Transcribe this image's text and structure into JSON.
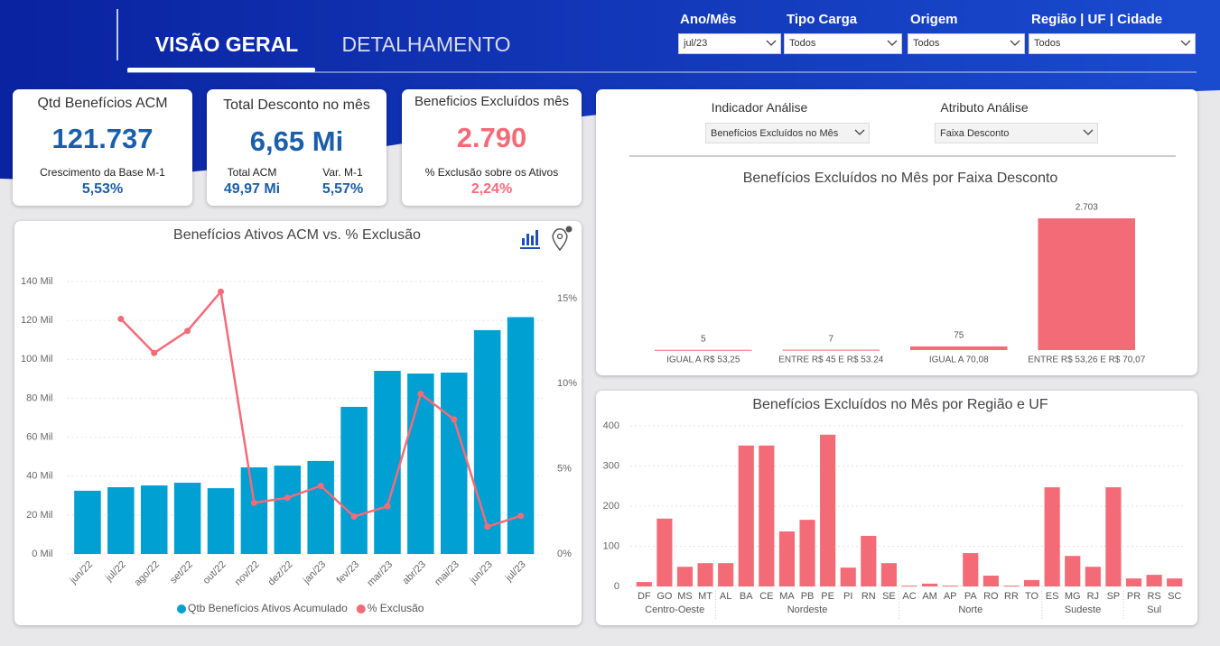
{
  "header": {
    "tabs": [
      "VISÃO GERAL",
      "DETALHAMENTO"
    ]
  },
  "filters": [
    {
      "label": "Ano/Mês",
      "value": "jul/23"
    },
    {
      "label": "Tipo Carga",
      "value": "Todos"
    },
    {
      "label": "Origem",
      "value": "Todos"
    },
    {
      "label": "Região | UF | Cidade",
      "value": "Todos"
    }
  ],
  "kpis": [
    {
      "title": "Qtd Benefícios ACM",
      "value": "121.737",
      "details": [
        {
          "label": "Crescimento da Base M-1",
          "value": "5,53%"
        }
      ]
    },
    {
      "title": "Total Desconto no mês",
      "value": "6,65 Mi",
      "details": [
        {
          "label": "Total ACM",
          "value": "49,97 Mi"
        },
        {
          "label": "Var. M-1",
          "value": "5,57%"
        }
      ]
    },
    {
      "title": "Beneficios Excluídos mês",
      "value": "2.790",
      "details": [
        {
          "label": "% Exclusão sobre os Ativos",
          "value": "2,24%"
        }
      ]
    }
  ],
  "selectors": [
    {
      "label": "Indicador Análise",
      "value": "Benefícios Excluídos no Mês"
    },
    {
      "label": "Atributo Análise",
      "value": "Faixa Desconto"
    }
  ],
  "chart_data": [
    {
      "type": "combo",
      "title": "Benefícios Ativos ACM vs. % Exclusão",
      "categories": [
        "jun/22",
        "jul/22",
        "ago/22",
        "set/22",
        "out/22",
        "nov/22",
        "dez/22",
        "jan/23",
        "fev/23",
        "mar/23",
        "abr/23",
        "mai/23",
        "jun/23",
        "jul/23"
      ],
      "series": [
        {
          "name": "Qtb Benefícios Ativos Acumulado",
          "type": "bar",
          "color": "#00a0d2",
          "values": [
            32.5,
            34.3,
            35.2,
            36.6,
            33.8,
            44.5,
            45.4,
            47.8,
            75.6,
            94.1,
            92.7,
            93.2,
            115,
            121.7
          ]
        },
        {
          "name": "% Exclusão",
          "type": "line",
          "axis": "y2",
          "color": "#f46b78",
          "values": [
            null,
            13.8,
            11.8,
            13.1,
            15.4,
            3.0,
            3.3,
            4.0,
            2.2,
            2.8,
            9.4,
            7.9,
            1.6,
            2.24
          ]
        }
      ],
      "ylim": [
        0,
        140
      ],
      "yticks": [
        {
          "value": 0,
          "label": "0 Mil"
        },
        {
          "value": 20,
          "label": "20 Mil"
        },
        {
          "value": 40,
          "label": "40 Mil"
        },
        {
          "value": 60,
          "label": "60 Mil"
        },
        {
          "value": 80,
          "label": "80 Mil"
        },
        {
          "value": 100,
          "label": "100 Mil"
        },
        {
          "value": 120,
          "label": "120 Mil"
        },
        {
          "value": 140,
          "label": "140 Mil"
        }
      ],
      "y2lim": [
        0,
        16
      ],
      "y2ticks": [
        {
          "value": 0,
          "label": "0%"
        },
        {
          "value": 5,
          "label": "5%"
        },
        {
          "value": 10,
          "label": "10%"
        },
        {
          "value": 15,
          "label": "15%"
        }
      ],
      "grid": true
    },
    {
      "type": "bar",
      "title": "Benefícios Excluídos no Mês por Faixa Desconto",
      "categories": [
        "IGUAL A R$ 53,25",
        "ENTRE R$ 45 E R$ 53.24",
        "IGUAL A 70,08",
        "ENTRE R$ 53,26 E R$ 70,07"
      ],
      "values": [
        5,
        7,
        75,
        2703
      ],
      "value_labels": [
        "5",
        "7",
        "75",
        "2.703"
      ],
      "color": "#f46b78"
    },
    {
      "type": "bar",
      "title": "Benefícios Excluídos no Mês por Região e UF",
      "groups": [
        {
          "name": "Centro-Oeste",
          "categories": [
            "DF",
            "GO",
            "MS",
            "MT"
          ],
          "values": [
            11,
            169,
            49,
            58
          ]
        },
        {
          "name": "Nordeste",
          "categories": [
            "AL",
            "BA",
            "CE",
            "MA",
            "PB",
            "PE",
            "PI",
            "RN",
            "SE"
          ],
          "values": [
            58,
            351,
            351,
            137,
            166,
            378,
            47,
            126,
            58
          ]
        },
        {
          "name": "Norte",
          "categories": [
            "AC",
            "AM",
            "AP",
            "PA",
            "RO",
            "RR",
            "TO"
          ],
          "values": [
            2,
            7,
            2,
            83,
            27,
            2,
            16
          ]
        },
        {
          "name": "Sudeste",
          "categories": [
            "ES",
            "MG",
            "RJ",
            "SP"
          ],
          "values": [
            247,
            76,
            49,
            247
          ]
        },
        {
          "name": "Sul",
          "categories": [
            "PR",
            "RS",
            "SC"
          ],
          "values": [
            20,
            29,
            20
          ]
        }
      ],
      "ylim": [
        0,
        400
      ],
      "yticks": [
        0,
        100,
        200,
        300,
        400
      ],
      "grid": true,
      "color": "#f46b78"
    }
  ]
}
